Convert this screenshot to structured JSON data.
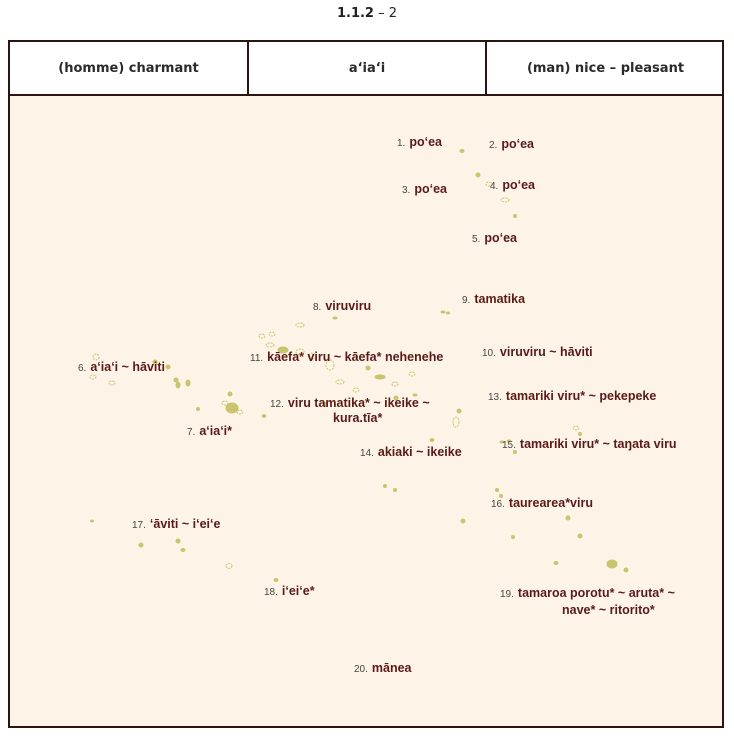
{
  "title": {
    "bold": "1.1.2",
    "rest": " – 2"
  },
  "header": {
    "french": "(homme) charmant",
    "tahitian": "a‘ia‘i",
    "english": "(man) nice  –  pleasant"
  },
  "colors": {
    "border": "#2a1512",
    "map_bg": "#fdf4e7",
    "island": "#c9c46e",
    "label": "#5a1a1a"
  },
  "labels": [
    {
      "num": "1.",
      "text": "po‘ea"
    },
    {
      "num": "2.",
      "text": "po‘ea"
    },
    {
      "num": "3.",
      "text": "po‘ea"
    },
    {
      "num": "4.",
      "text": "po‘ea"
    },
    {
      "num": "5.",
      "text": "po‘ea"
    },
    {
      "num": "6.",
      "text": "a‘ia‘i ~ hāviti"
    },
    {
      "num": "7.",
      "text": "a‘ia‘i*"
    },
    {
      "num": "8.",
      "text": "viruviru"
    },
    {
      "num": "9.",
      "text": "tamatika"
    },
    {
      "num": "10.",
      "text": "viruviru ~ hāviti"
    },
    {
      "num": "11.",
      "text": "kāefa* viru ~ kāefa* nehenehe"
    },
    {
      "num": "12.",
      "text": "viru tamatika* ~ ikeike ~",
      "text2": "kura.tīa*"
    },
    {
      "num": "13.",
      "text": "tamariki viru* ~ pekepeke"
    },
    {
      "num": "14.",
      "text": "akiaki ~ ikeike"
    },
    {
      "num": "15.",
      "text": "tamariki viru* ~ taŋata viru"
    },
    {
      "num": "16.",
      "text": "taurearea*viru"
    },
    {
      "num": "17.",
      "text": "‘āviti ~ i‘ei‘e"
    },
    {
      "num": "18.",
      "text": "i‘ei‘e*"
    },
    {
      "num": "19.",
      "text": "tamaroa porotu* ~ aruta* ~",
      "text2": "nave* ~ ritorito*"
    },
    {
      "num": "20.",
      "text": "mānea"
    }
  ]
}
